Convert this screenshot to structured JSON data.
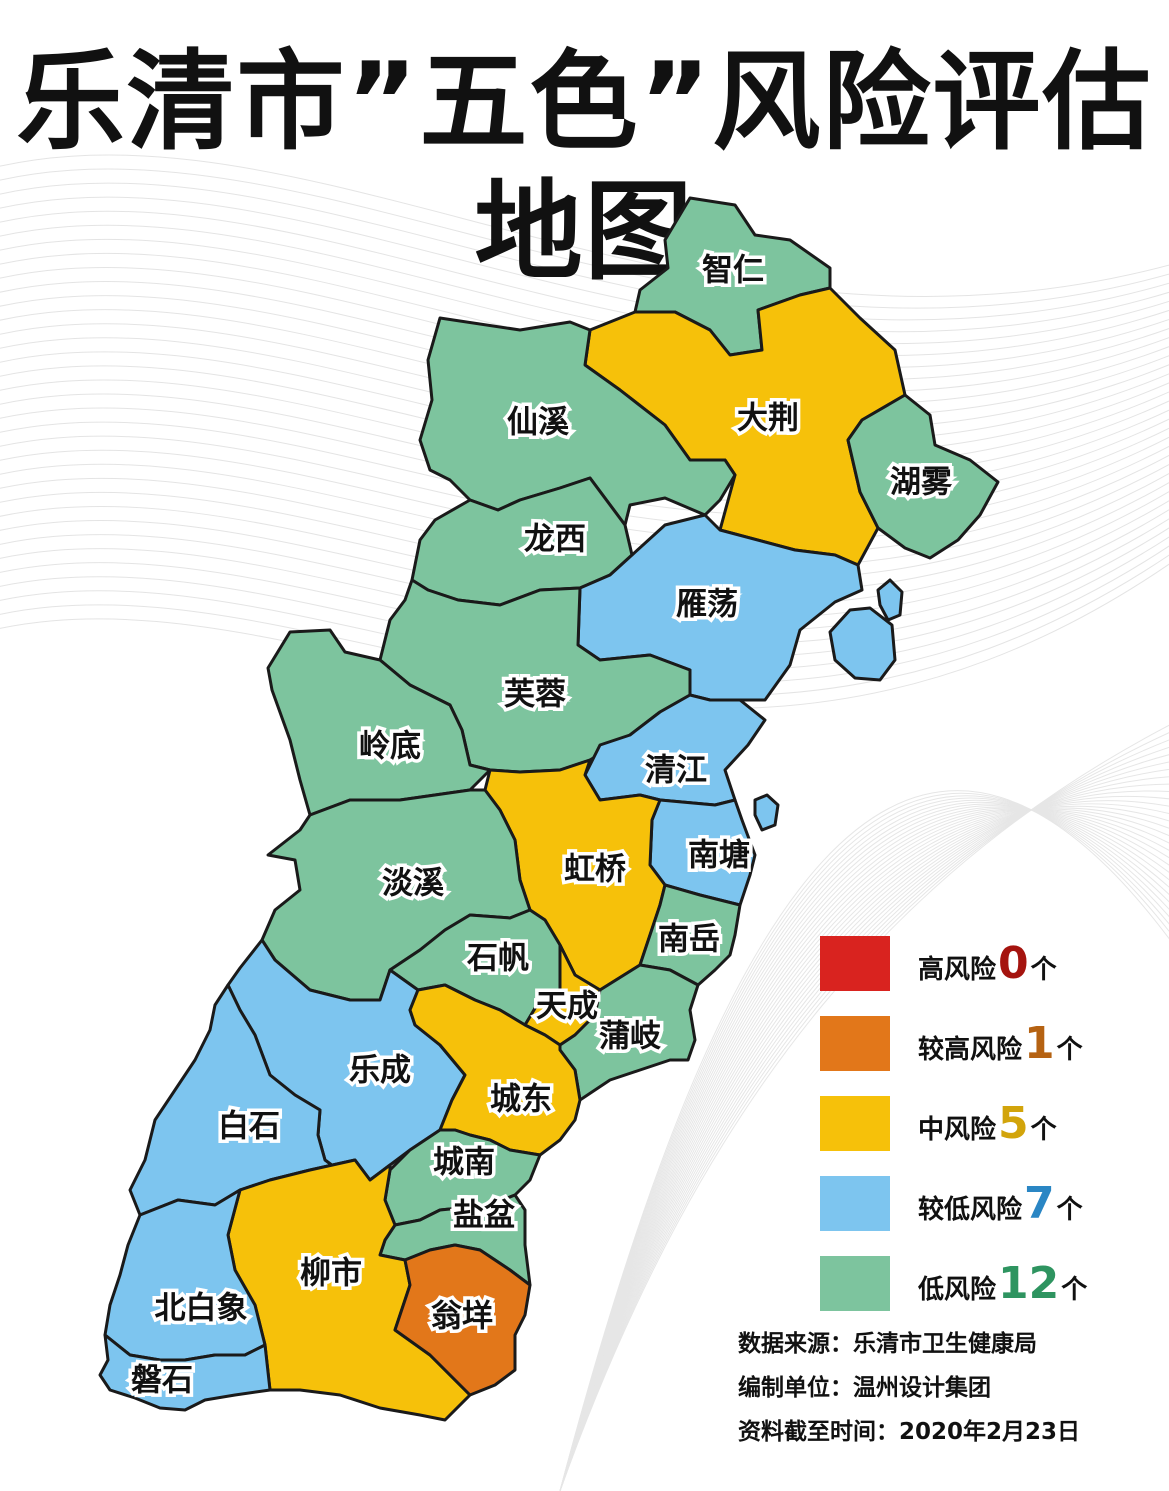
{
  "title": "乐清市”五色”风险评估地图",
  "colors": {
    "high": "#d9231f",
    "higher": "#e2771a",
    "medium": "#f6c10a",
    "lower": "#7dc5ef",
    "low": "#7dc49e"
  },
  "regions": [
    {
      "name": "智仁",
      "risk": "low"
    },
    {
      "name": "大荆",
      "risk": "medium"
    },
    {
      "name": "湖雾",
      "risk": "low"
    },
    {
      "name": "仙溪",
      "risk": "low"
    },
    {
      "name": "龙西",
      "risk": "low"
    },
    {
      "name": "雁荡",
      "risk": "lower"
    },
    {
      "name": "芙蓉",
      "risk": "low"
    },
    {
      "name": "岭底",
      "risk": "low"
    },
    {
      "name": "清江",
      "risk": "lower"
    },
    {
      "name": "南塘",
      "risk": "lower"
    },
    {
      "name": "虹桥",
      "risk": "medium"
    },
    {
      "name": "淡溪",
      "risk": "low"
    },
    {
      "name": "南岳",
      "risk": "low"
    },
    {
      "name": "石帆",
      "risk": "low"
    },
    {
      "name": "天成",
      "risk": "medium"
    },
    {
      "name": "蒲岐",
      "risk": "low"
    },
    {
      "name": "乐成",
      "risk": "lower"
    },
    {
      "name": "白石",
      "risk": "lower"
    },
    {
      "name": "城东",
      "risk": "medium"
    },
    {
      "name": "城南",
      "risk": "low"
    },
    {
      "name": "盐盆",
      "risk": "low"
    },
    {
      "name": "柳市",
      "risk": "medium"
    },
    {
      "name": "北白象",
      "risk": "lower"
    },
    {
      "name": "翁垟",
      "risk": "higher"
    },
    {
      "name": "磐石",
      "risk": "lower"
    }
  ],
  "legend": [
    {
      "label": "高风险",
      "count": "0",
      "unit": "个",
      "risk": "high",
      "count_color": "#a5140f"
    },
    {
      "label": "较高风险",
      "count": "1",
      "unit": "个",
      "risk": "higher",
      "count_color": "#b56212"
    },
    {
      "label": "中风险",
      "count": "5",
      "unit": "个",
      "risk": "medium",
      "count_color": "#d2a40b"
    },
    {
      "label": "较低风险",
      "count": "7",
      "unit": "个",
      "risk": "lower",
      "count_color": "#2a86c4"
    },
    {
      "label": "低风险",
      "count": "12",
      "unit": "个",
      "risk": "low",
      "count_color": "#2e9460"
    }
  ],
  "credits": {
    "source": "数据来源：乐清市卫生健康局",
    "maker": "编制单位：温州设计集团",
    "date": "资料截至时间：2020年2月23日"
  }
}
